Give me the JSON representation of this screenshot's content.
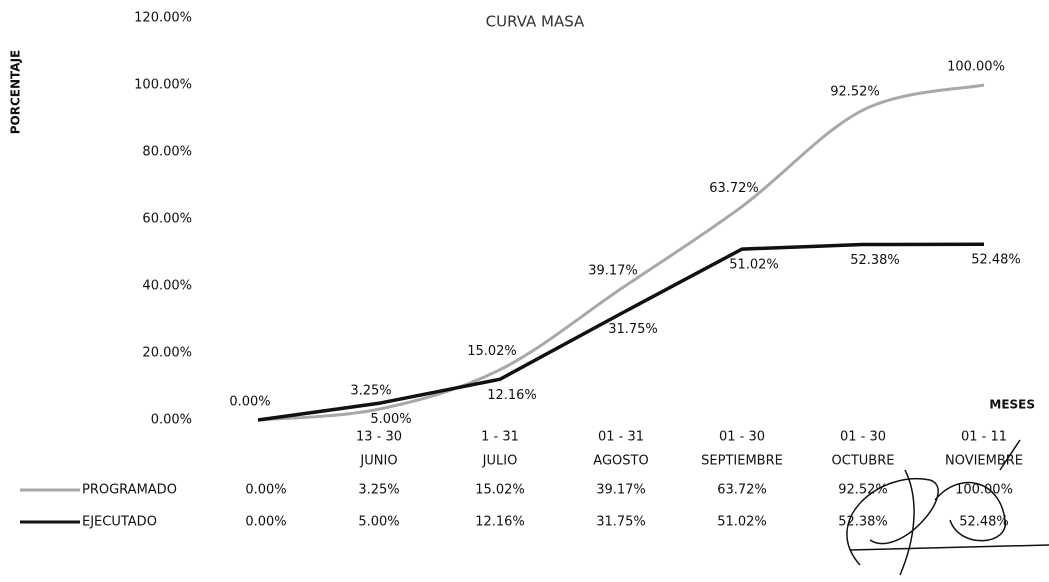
{
  "chart_data": {
    "type": "line",
    "title": "CURVA MASA",
    "y_label": "PORCENTAJE",
    "x_label": "MESES",
    "categories": [
      null,
      [
        "13 - 30",
        "JUNIO"
      ],
      [
        "1 - 31",
        "JULIO"
      ],
      [
        "01 - 31",
        "AGOSTO"
      ],
      [
        "01 - 30",
        "SEPTIEMBRE"
      ],
      [
        "01 - 30",
        "OCTUBRE"
      ],
      [
        "01 - 11",
        "NOVIEMBRE"
      ]
    ],
    "series": [
      {
        "name": "PROGRAMADO",
        "color": "#a8a8a8",
        "smooth": true,
        "values": [
          0,
          3.25,
          15.02,
          39.17,
          63.72,
          92.52,
          100
        ],
        "value_labels": [
          "0.00%",
          "3.25%",
          "15.02%",
          "39.17%",
          "63.72%",
          "92.52%",
          "100.00%"
        ]
      },
      {
        "name": "EJECUTADO",
        "color": "#111111",
        "smooth": false,
        "values": [
          0,
          5,
          12.16,
          31.75,
          51.02,
          52.38,
          52.48
        ],
        "value_labels": [
          "0.00%",
          "5.00%",
          "12.16%",
          "31.75%",
          "51.02%",
          "52.38%",
          "52.48%"
        ]
      }
    ],
    "ylim": [
      0,
      120
    ],
    "yticks": [
      {
        "value": 0,
        "label": "0.00%"
      },
      {
        "value": 20,
        "label": "20.00%"
      },
      {
        "value": 40,
        "label": "40.00%"
      },
      {
        "value": 60,
        "label": "60.00%"
      },
      {
        "value": 80,
        "label": "80.00%"
      },
      {
        "value": 100,
        "label": "100.00%"
      },
      {
        "value": 120,
        "label": "120.00%"
      }
    ],
    "grid": false
  }
}
